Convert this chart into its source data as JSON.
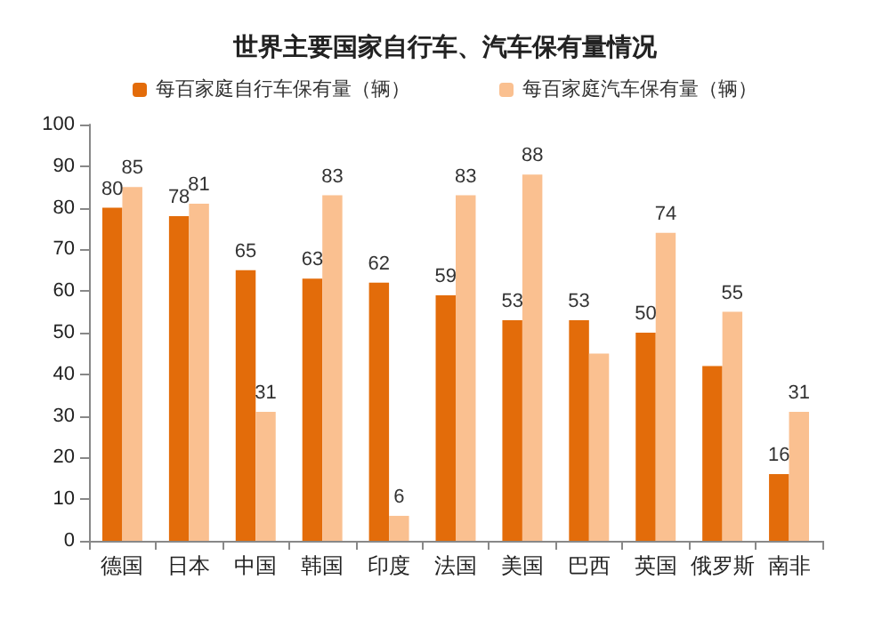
{
  "chart_data": {
    "type": "bar",
    "title": "世界主要国家自行车、汽车保有量情况",
    "categories": [
      "德国",
      "日本",
      "中国",
      "韩国",
      "印度",
      "法国",
      "美国",
      "巴西",
      "英国",
      "俄罗斯",
      "南非"
    ],
    "series": [
      {
        "name": "每百家庭自行车保有量（辆）",
        "color": "#e36c0a",
        "values": [
          80,
          78,
          65,
          63,
          62,
          59,
          53,
          53,
          50,
          42,
          16
        ],
        "value_labels": [
          "80",
          "78",
          "65",
          "63",
          "62",
          "59",
          "53",
          "53",
          "50",
          null,
          "16"
        ]
      },
      {
        "name": "每百家庭汽车保有量（辆）",
        "color": "#fac090",
        "values": [
          85,
          81,
          31,
          83,
          6,
          83,
          88,
          45,
          74,
          55,
          31
        ],
        "value_labels": [
          "85",
          "81",
          "31",
          "83",
          "6",
          "83",
          "88",
          null,
          "74",
          "55",
          "31"
        ]
      }
    ],
    "ylim": [
      0,
      100
    ],
    "yticks": [
      0,
      10,
      20,
      30,
      40,
      50,
      60,
      70,
      80,
      90,
      100
    ],
    "grid": false,
    "legend": "top"
  }
}
